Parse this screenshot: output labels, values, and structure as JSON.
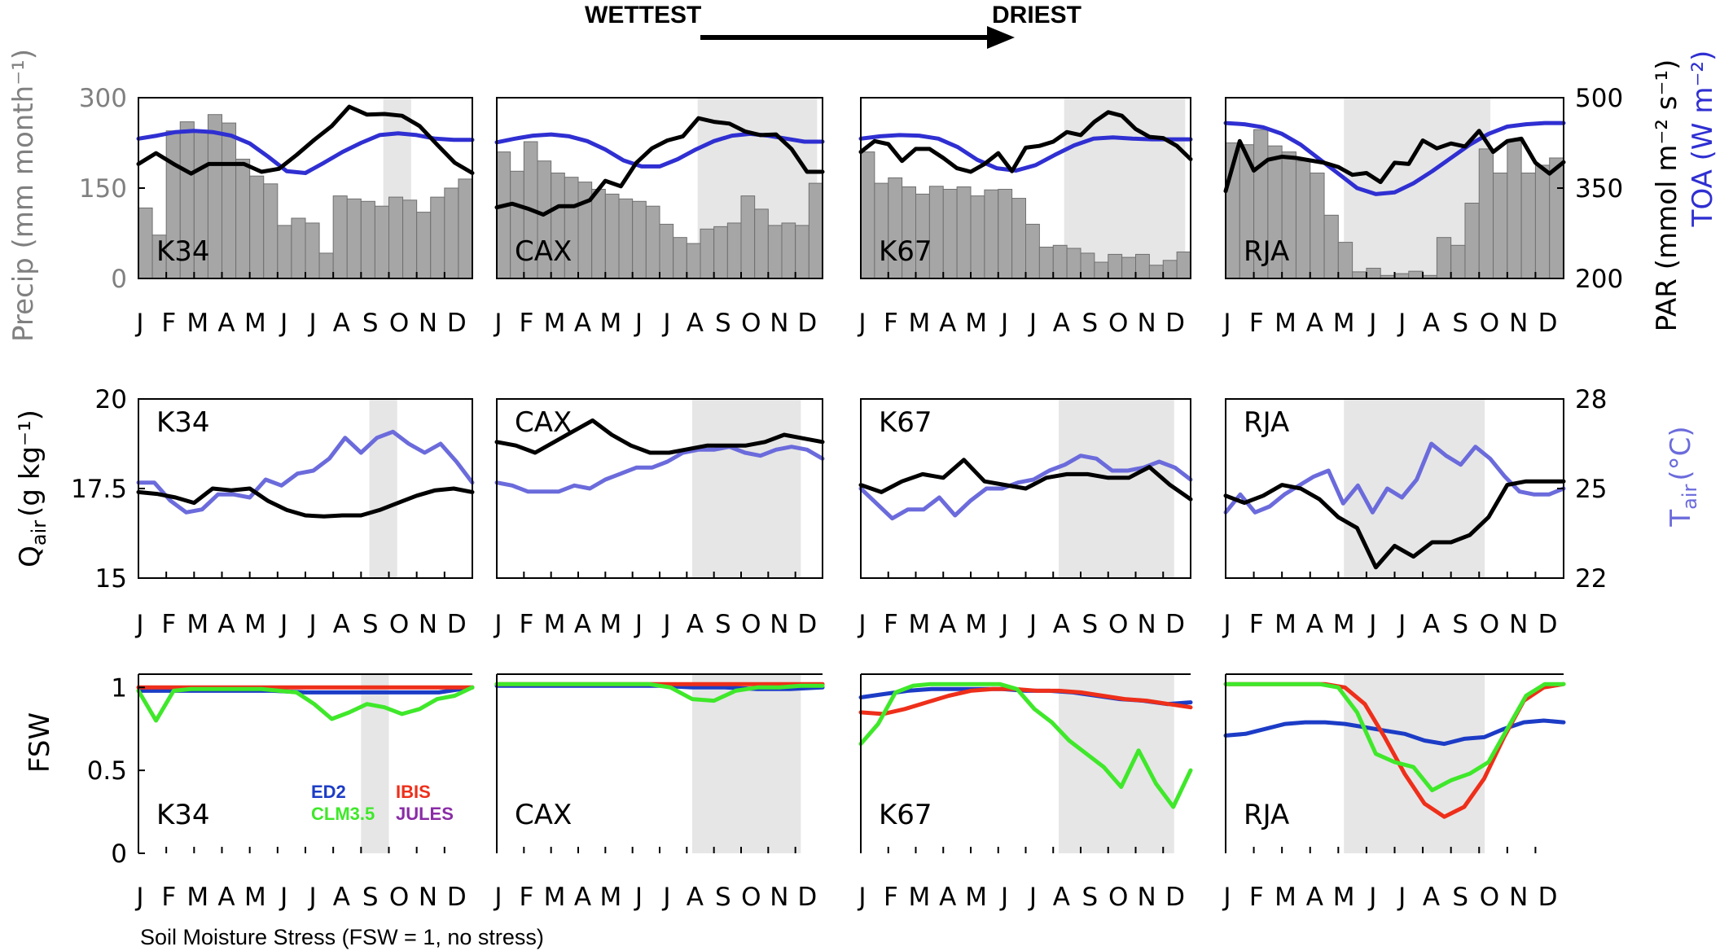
{
  "header": {
    "left": "WETTEST",
    "right": "DRIEST"
  },
  "months": [
    "J",
    "F",
    "M",
    "A",
    "M",
    "J",
    "J",
    "A",
    "S",
    "O",
    "N",
    "D"
  ],
  "sites": [
    "K34",
    "CAX",
    "K67",
    "RJA"
  ],
  "row_labels": {
    "precip": "Precip (mm month⁻¹)",
    "par": "PAR (mmol m⁻² s⁻¹)",
    "toa": "TOA (W m⁻²)",
    "qair": "Q",
    "qair_sub": "air",
    "qair_unit": "(g kg⁻¹)",
    "tair": "T",
    "tair_sub": "air",
    "tair_unit": "(°C)",
    "fsw": "FSW"
  },
  "legend": {
    "ed2": "ED2",
    "ibis": "IBIS",
    "clm": "CLM3.5",
    "jules": "JULES"
  },
  "caption": "Soil Moisture Stress (FSW = 1, no stress)",
  "colors": {
    "precip_bars": "#a6a6a6",
    "par_line": "#000000",
    "toa_line": "#2f2fd2",
    "tair_line": "#6b6bdc",
    "qair_line": "#000000",
    "dry_season": "#e6e6e6",
    "ed2": "#1c3cc6",
    "ibis": "#ee2f1a",
    "clm": "#3fe82a",
    "jules": "#8a2ca6"
  },
  "chart_data": [
    {
      "type": "bar+line",
      "row": "radiation-precipitation",
      "ylabel_left": "Precip (mm month⁻¹)",
      "ylabel_right": "PAR (mmol m⁻² s⁻¹)",
      "ylabel_right2": "TOA (W m⁻²)",
      "ylim_left": [
        0,
        300
      ],
      "yticks_left": [
        0,
        150,
        300
      ],
      "ylim_right": [
        200,
        500
      ],
      "yticks_right": [
        200,
        350,
        500
      ],
      "panels": [
        {
          "site": "K34",
          "dry_season": [
            8.8,
            9.8
          ],
          "precip": [
            117,
            72,
            245,
            260,
            245,
            272,
            258,
            198,
            170,
            157,
            88,
            100,
            92,
            42,
            137,
            132,
            128,
            120,
            135,
            130,
            110,
            135,
            150,
            165
          ],
          "par": [
            390,
            408,
            390,
            374,
            390,
            390,
            390,
            377,
            382,
            405,
            430,
            453,
            485,
            472,
            473,
            470,
            453,
            422,
            392,
            375
          ],
          "toa": [
            432,
            437,
            443,
            445,
            443,
            437,
            424,
            402,
            378,
            375,
            392,
            410,
            425,
            438,
            441,
            438,
            432,
            430,
            430
          ]
        },
        {
          "site": "CAX",
          "dry_season": [
            7.4,
            11.8
          ],
          "precip": [
            210,
            178,
            227,
            195,
            175,
            168,
            160,
            148,
            140,
            132,
            128,
            120,
            90,
            68,
            58,
            82,
            86,
            92,
            137,
            115,
            88,
            92,
            88,
            158
          ],
          "par": [
            318,
            324,
            316,
            306,
            320,
            320,
            330,
            362,
            353,
            392,
            416,
            429,
            436,
            466,
            460,
            457,
            444,
            438,
            439,
            415,
            377,
            377
          ],
          "toa": [
            426,
            432,
            437,
            439,
            436,
            428,
            414,
            396,
            386,
            386,
            398,
            414,
            428,
            437,
            440,
            437,
            432,
            427,
            427
          ]
        },
        {
          "site": "K67",
          "dry_season": [
            7.4,
            11.8
          ],
          "precip": [
            210,
            158,
            167,
            152,
            140,
            153,
            148,
            152,
            137,
            147,
            148,
            133,
            90,
            52,
            55,
            50,
            42,
            27,
            40,
            35,
            40,
            22,
            30,
            44
          ],
          "par": [
            410,
            428,
            423,
            395,
            415,
            415,
            400,
            383,
            377,
            390,
            408,
            378,
            417,
            420,
            427,
            443,
            438,
            460,
            476,
            470,
            448,
            435,
            433,
            420,
            398
          ],
          "toa": [
            432,
            436,
            438,
            437,
            432,
            418,
            397,
            383,
            379,
            388,
            405,
            421,
            432,
            434,
            432,
            431,
            431,
            431
          ]
        },
        {
          "site": "RJA",
          "dry_season": [
            4.2,
            9.4
          ],
          "precip": [
            225,
            222,
            247,
            220,
            210,
            195,
            175,
            105,
            60,
            11,
            17,
            5,
            8,
            12,
            5,
            68,
            55,
            125,
            215,
            175,
            228,
            175,
            188,
            200
          ],
          "par": [
            345,
            428,
            379,
            397,
            402,
            400,
            396,
            392,
            385,
            372,
            375,
            360,
            392,
            390,
            429,
            416,
            424,
            419,
            445,
            410,
            428,
            432,
            392,
            374,
            393
          ],
          "toa": [
            458,
            456,
            451,
            440,
            422,
            398,
            374,
            350,
            340,
            343,
            358,
            378,
            400,
            422,
            440,
            452,
            456,
            458,
            458
          ]
        }
      ]
    },
    {
      "type": "line",
      "row": "humidity-temperature",
      "ylabel_left": "Q air (g kg⁻¹)",
      "ylabel_right": "T air (°C)",
      "ylim_left": [
        15,
        20
      ],
      "yticks_left": [
        15,
        17.5,
        20
      ],
      "ylim_right": [
        22,
        28
      ],
      "yticks_right": [
        22,
        25,
        28
      ],
      "panels": [
        {
          "site": "K34",
          "dry_season": [
            8.3,
            9.3
          ],
          "qair": [
            17.4,
            17.35,
            17.25,
            17.1,
            17.5,
            17.45,
            17.5,
            17.15,
            16.9,
            16.75,
            16.72,
            16.75,
            16.75,
            16.9,
            17.1,
            17.3,
            17.45,
            17.5,
            17.4
          ],
          "tair": [
            25.2,
            25.2,
            24.6,
            24.2,
            24.3,
            24.8,
            24.8,
            24.7,
            25.3,
            25.1,
            25.5,
            25.6,
            26.0,
            26.7,
            26.2,
            26.7,
            26.9,
            26.5,
            26.2,
            26.5,
            25.9,
            25.2
          ]
        },
        {
          "site": "CAX",
          "dry_season": [
            7.2,
            11.2
          ],
          "qair": [
            18.8,
            18.7,
            18.5,
            18.8,
            19.1,
            19.4,
            19.0,
            18.7,
            18.5,
            18.5,
            18.6,
            18.7,
            18.7,
            18.7,
            18.8,
            19.0,
            18.9,
            18.8
          ],
          "tair": [
            25.2,
            25.1,
            24.9,
            24.9,
            24.9,
            25.1,
            25.0,
            25.3,
            25.5,
            25.7,
            25.7,
            25.9,
            26.2,
            26.3,
            26.3,
            26.4,
            26.2,
            26.1,
            26.3,
            26.4,
            26.3,
            26.0
          ]
        },
        {
          "site": "K67",
          "dry_season": [
            7.2,
            11.4
          ],
          "qair": [
            17.6,
            17.4,
            17.7,
            17.9,
            17.8,
            18.3,
            17.7,
            17.6,
            17.5,
            17.8,
            17.9,
            17.9,
            17.8,
            17.8,
            18.1,
            17.6,
            17.2
          ],
          "tair": [
            25.0,
            24.5,
            24.0,
            24.3,
            24.3,
            24.7,
            24.1,
            24.6,
            25.0,
            25.0,
            25.2,
            25.3,
            25.6,
            25.8,
            26.1,
            26.0,
            25.6,
            25.6,
            25.7,
            25.9,
            25.7,
            25.3
          ]
        },
        {
          "site": "RJA",
          "dry_season": [
            4.2,
            9.2
          ],
          "qair": [
            17.3,
            17.1,
            17.3,
            17.6,
            17.5,
            17.2,
            16.7,
            16.4,
            15.3,
            15.9,
            15.6,
            16.0,
            16.0,
            16.2,
            16.7,
            17.6,
            17.7,
            17.7,
            17.7
          ],
          "tair": [
            24.2,
            24.8,
            24.2,
            24.4,
            24.8,
            25.1,
            25.4,
            25.6,
            24.5,
            25.1,
            24.2,
            25.0,
            24.7,
            25.3,
            26.5,
            26.1,
            25.8,
            26.4,
            26.0,
            25.4,
            24.9,
            24.8,
            24.8,
            25.0
          ]
        }
      ]
    },
    {
      "type": "line",
      "row": "soil-moisture-stress",
      "ylabel_left": "FSW",
      "ylim": [
        0,
        1.08
      ],
      "yticks": [
        0,
        0.5,
        1
      ],
      "panels": [
        {
          "site": "K34",
          "dry_season": [
            8.0,
            9.0
          ],
          "show_ticks": true,
          "ed2": [
            0.98,
            0.98,
            0.98,
            0.98,
            0.98,
            0.97,
            0.97,
            0.97,
            0.97,
            0.97,
            1.0
          ],
          "ibis": [
            1.0,
            1.0,
            1.0,
            1.0,
            1.0,
            1.0,
            1.0,
            1.0,
            1.0,
            1.0,
            1.0
          ],
          "clm": [
            0.98,
            0.8,
            0.98,
            0.99,
            0.99,
            0.99,
            0.99,
            0.99,
            0.98,
            0.97,
            0.9,
            0.81,
            0.85,
            0.9,
            0.88,
            0.84,
            0.87,
            0.93,
            0.95,
            1.0
          ]
        },
        {
          "site": "CAX",
          "dry_season": [
            7.2,
            11.2
          ],
          "show_ticks": false,
          "ed2": [
            1.01,
            1.01,
            1.01,
            1.01,
            1.01,
            1.01,
            1.0,
            1.0,
            0.99,
            0.99,
            1.0
          ],
          "ibis": [
            1.02,
            1.02,
            1.02,
            1.02,
            1.02,
            1.02,
            1.02,
            1.02,
            1.02,
            1.02,
            1.02
          ],
          "clm": [
            1.02,
            1.02,
            1.02,
            1.02,
            1.02,
            1.02,
            1.02,
            1.02,
            1.0,
            0.93,
            0.92,
            0.98,
            1.0,
            1.0,
            1.01,
            1.01
          ]
        },
        {
          "site": "K67",
          "dry_season": [
            7.2,
            11.4
          ],
          "show_ticks": false,
          "ed2": [
            0.94,
            0.96,
            0.98,
            0.99,
            0.99,
            0.99,
            0.99,
            0.98,
            0.98,
            0.97,
            0.95,
            0.93,
            0.92,
            0.9,
            0.91
          ],
          "ibis": [
            0.85,
            0.84,
            0.87,
            0.91,
            0.95,
            0.98,
            0.99,
            0.99,
            0.98,
            0.98,
            0.97,
            0.95,
            0.93,
            0.92,
            0.9,
            0.88
          ],
          "clm": [
            0.66,
            0.78,
            0.97,
            1.01,
            1.02,
            1.02,
            1.02,
            1.02,
            1.02,
            0.99,
            0.87,
            0.79,
            0.68,
            0.6,
            0.52,
            0.4,
            0.62,
            0.42,
            0.28,
            0.5
          ]
        },
        {
          "site": "RJA",
          "dry_season": [
            4.2,
            9.2
          ],
          "show_ticks": false,
          "ed2": [
            0.71,
            0.72,
            0.75,
            0.78,
            0.79,
            0.79,
            0.78,
            0.76,
            0.74,
            0.72,
            0.68,
            0.66,
            0.69,
            0.7,
            0.75,
            0.79,
            0.8,
            0.79
          ],
          "ibis": [
            1.02,
            1.02,
            1.02,
            1.02,
            1.02,
            1.02,
            1.0,
            0.9,
            0.7,
            0.48,
            0.3,
            0.22,
            0.28,
            0.45,
            0.7,
            0.92,
            1.0,
            1.02
          ],
          "clm": [
            1.02,
            1.02,
            1.02,
            1.02,
            1.02,
            1.02,
            1.0,
            0.85,
            0.6,
            0.55,
            0.52,
            0.38,
            0.44,
            0.48,
            0.55,
            0.75,
            0.95,
            1.02,
            1.02
          ]
        }
      ]
    }
  ]
}
